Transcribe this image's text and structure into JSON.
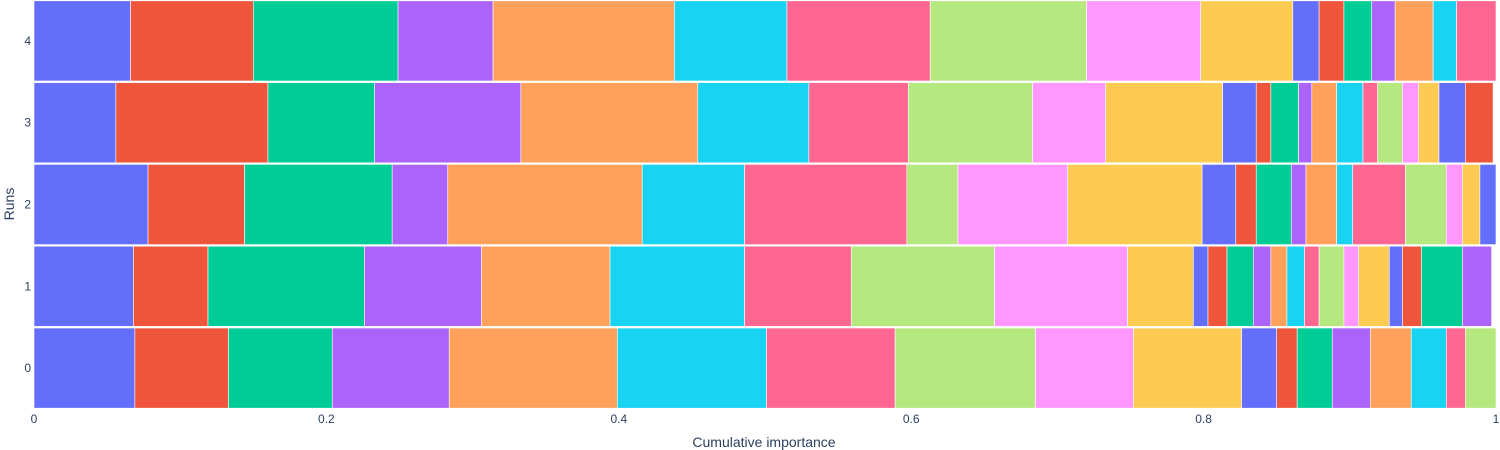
{
  "palette": [
    "#636efa",
    "#EF553B",
    "#00cc96",
    "#ab63fa",
    "#FFA15A",
    "#19d3f3",
    "#FF6692",
    "#B6E880",
    "#FF97FF",
    "#FECB52"
  ],
  "chart_data": {
    "type": "bar",
    "orientation": "horizontal",
    "stacked": true,
    "xlabel": "Cumulative importance",
    "ylabel": "Runs",
    "xlim": [
      0,
      1
    ],
    "x_ticks": [
      0,
      0.2,
      0.4,
      0.6,
      0.8,
      1
    ],
    "x_tick_labels": [
      "0",
      "0.2",
      "0.4",
      "0.6",
      "0.8",
      "1"
    ],
    "categories": [
      "0",
      "1",
      "2",
      "3",
      "4"
    ],
    "grid": false,
    "runs": [
      {
        "run": "0",
        "segments": [
          0.069,
          0.064,
          0.071,
          0.08,
          0.115,
          0.102,
          0.088,
          0.096,
          0.067,
          0.074,
          0.024,
          0.014,
          0.024,
          0.026,
          0.028,
          0.024,
          0.013,
          0.021
        ]
      },
      {
        "run": "1",
        "segments": [
          0.068,
          0.051,
          0.107,
          0.08,
          0.088,
          0.092,
          0.073,
          0.098,
          0.091,
          0.045,
          0.01,
          0.013,
          0.018,
          0.012,
          0.011,
          0.012,
          0.01,
          0.017,
          0.01,
          0.021,
          0.009,
          0.013,
          0.028,
          0.02
        ]
      },
      {
        "run": "2",
        "segments": [
          0.078,
          0.066,
          0.101,
          0.038,
          0.133,
          0.07,
          0.111,
          0.035,
          0.075,
          0.092,
          0.023,
          0.014,
          0.024,
          0.01,
          0.021,
          0.011,
          0.036,
          0.028,
          0.011,
          0.012,
          0.012
        ]
      },
      {
        "run": "3",
        "segments": [
          0.056,
          0.104,
          0.073,
          0.1,
          0.121,
          0.076,
          0.068,
          0.085,
          0.05,
          0.08,
          0.023,
          0.01,
          0.019,
          0.009,
          0.017,
          0.018,
          0.01,
          0.017,
          0.011,
          0.014,
          0.018,
          0.019
        ]
      },
      {
        "run": "4",
        "segments": [
          0.066,
          0.084,
          0.099,
          0.065,
          0.124,
          0.077,
          0.098,
          0.107,
          0.078,
          0.063,
          0.018,
          0.017,
          0.019,
          0.016,
          0.026,
          0.016,
          0.027
        ]
      }
    ]
  }
}
